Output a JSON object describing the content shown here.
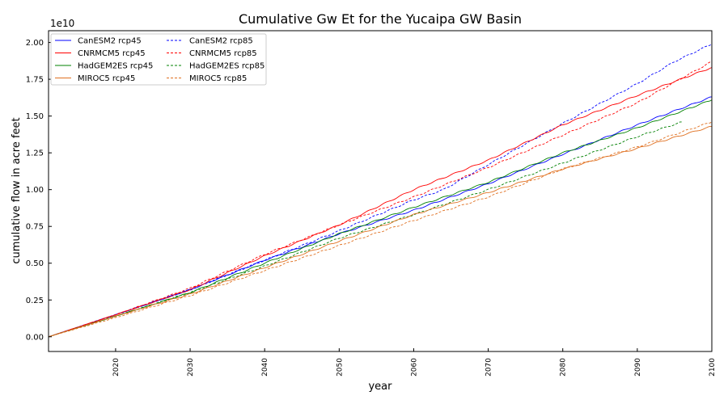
{
  "chart_data": {
    "type": "line",
    "title": "Cumulative Gw Et for the Yucaipa GW Basin",
    "xlabel": "year",
    "ylabel": "cumulative flow in acre feet",
    "y_offset_label": "1e10",
    "xlim": [
      2011,
      2100
    ],
    "ylim": [
      -0.1,
      2.08
    ],
    "y_scale_factor": 10000000000,
    "xticks": [
      2020,
      2030,
      2040,
      2050,
      2060,
      2070,
      2080,
      2090,
      2100
    ],
    "yticks": [
      0.0,
      0.25,
      0.5,
      0.75,
      1.0,
      1.25,
      1.5,
      1.75,
      2.0
    ],
    "ytick_labels": [
      "0.00",
      "0.25",
      "0.50",
      "0.75",
      "1.00",
      "1.25",
      "1.50",
      "1.75",
      "2.00"
    ],
    "legend_placement": "top-left",
    "grid": false,
    "series": [
      {
        "name": "CanESM2 rcp45",
        "color": "#0000ff",
        "style": "solid",
        "x": [
          2011,
          2020,
          2030,
          2040,
          2050,
          2060,
          2070,
          2080,
          2090,
          2100
        ],
        "y": [
          0.0,
          0.15,
          0.32,
          0.52,
          0.7,
          0.86,
          1.04,
          1.24,
          1.44,
          1.63
        ]
      },
      {
        "name": "CanESM2 rcp85",
        "color": "#0000ff",
        "style": "dashed",
        "x": [
          2011,
          2020,
          2030,
          2040,
          2050,
          2060,
          2064,
          2070,
          2080,
          2090,
          2095,
          2100
        ],
        "y": [
          0.0,
          0.15,
          0.32,
          0.52,
          0.72,
          0.93,
          1.0,
          1.17,
          1.45,
          1.72,
          1.87,
          1.99
        ]
      },
      {
        "name": "CNRMCM5 rcp45",
        "color": "#ff0000",
        "style": "solid",
        "x": [
          2011,
          2020,
          2030,
          2040,
          2050,
          2060,
          2070,
          2080,
          2090,
          2100
        ],
        "y": [
          0.0,
          0.15,
          0.32,
          0.55,
          0.76,
          1.0,
          1.2,
          1.44,
          1.64,
          1.83
        ]
      },
      {
        "name": "CNRMCM5 rcp85",
        "color": "#ff0000",
        "style": "dashed",
        "x": [
          2011,
          2020,
          2030,
          2040,
          2050,
          2060,
          2070,
          2080,
          2090,
          2100
        ],
        "y": [
          0.0,
          0.15,
          0.33,
          0.56,
          0.76,
          0.95,
          1.15,
          1.37,
          1.59,
          1.87
        ]
      },
      {
        "name": "HadGEM2ES rcp45",
        "color": "#008000",
        "style": "solid",
        "x": [
          2011,
          2020,
          2030,
          2040,
          2050,
          2060,
          2070,
          2080,
          2090,
          2100
        ],
        "y": [
          0.0,
          0.14,
          0.3,
          0.5,
          0.7,
          0.88,
          1.05,
          1.25,
          1.42,
          1.61
        ]
      },
      {
        "name": "HadGEM2ES rcp85",
        "color": "#008000",
        "style": "dashed",
        "x": [
          2011,
          2020,
          2030,
          2040,
          2050,
          2060,
          2070,
          2080,
          2090,
          2096
        ],
        "y": [
          0.0,
          0.14,
          0.3,
          0.48,
          0.67,
          0.83,
          1.0,
          1.18,
          1.36,
          1.46
        ]
      },
      {
        "name": "MIROC5 rcp45",
        "color": "#e07020",
        "style": "solid",
        "x": [
          2011,
          2020,
          2030,
          2040,
          2050,
          2060,
          2070,
          2080,
          2090,
          2100
        ],
        "y": [
          0.0,
          0.14,
          0.29,
          0.47,
          0.65,
          0.83,
          0.98,
          1.14,
          1.28,
          1.43
        ]
      },
      {
        "name": "MIROC5 rcp85",
        "color": "#e07020",
        "style": "dashed",
        "x": [
          2011,
          2020,
          2030,
          2040,
          2050,
          2060,
          2070,
          2080,
          2090,
          2100
        ],
        "y": [
          0.0,
          0.13,
          0.28,
          0.45,
          0.62,
          0.79,
          0.95,
          1.14,
          1.29,
          1.46
        ]
      }
    ]
  }
}
